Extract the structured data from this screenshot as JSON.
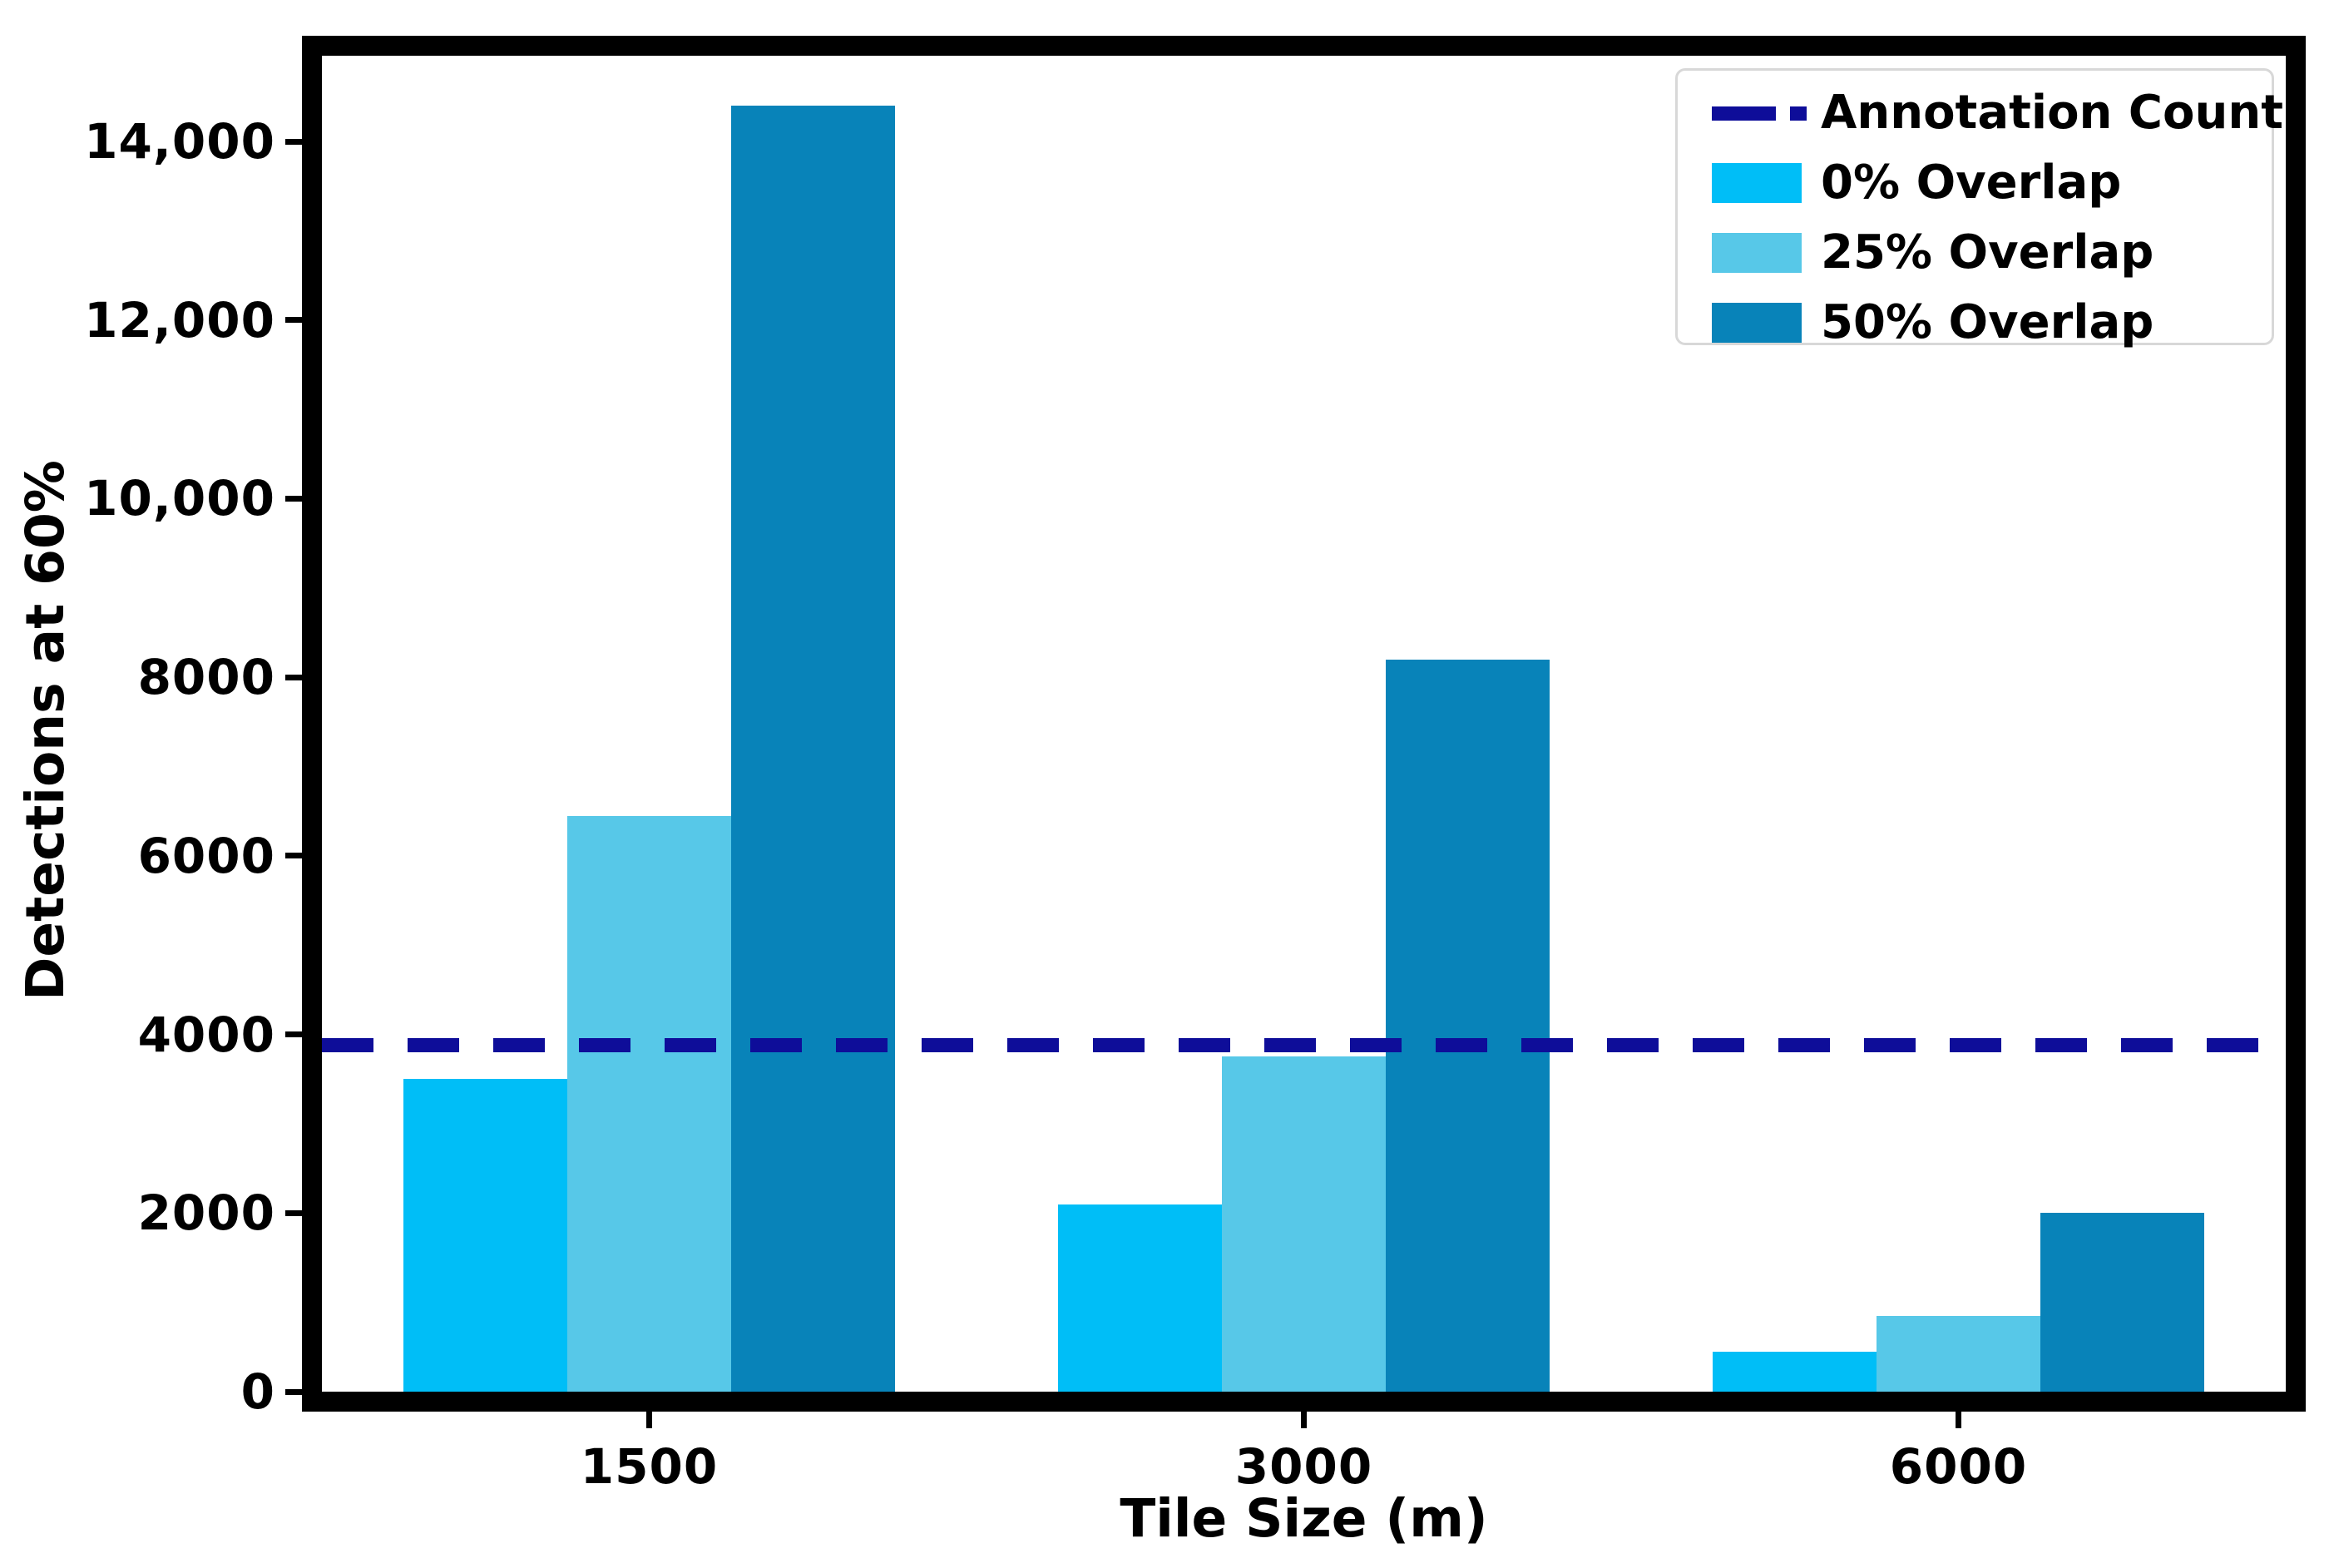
{
  "chart_data": {
    "type": "bar",
    "title": "",
    "xlabel": "Tile Size (m)",
    "ylabel": "Detections at 60%",
    "categories": [
      "1500",
      "3000",
      "6000"
    ],
    "series": [
      {
        "name": "0% Overlap",
        "color": "#00bef7",
        "values": [
          3500,
          2100,
          450
        ]
      },
      {
        "name": "25% Overlap",
        "color": "#57c8e8",
        "values": [
          6450,
          3750,
          850
        ]
      },
      {
        "name": "50% Overlap",
        "color": "#0883b9",
        "values": [
          14400,
          8200,
          2000
        ]
      }
    ],
    "reference_line": {
      "name": "Annotation Count",
      "value": 3880,
      "color": "#0e0d99",
      "style": "dashed"
    },
    "ylim": [
      0,
      14960
    ],
    "yticks": {
      "values": [
        0,
        2000,
        4000,
        6000,
        8000,
        10000,
        12000,
        14000
      ],
      "labels": [
        "0",
        "2000",
        "4000",
        "6000",
        "8000",
        "10,000",
        "12,000",
        "14,000"
      ]
    },
    "legend_position": "upper right",
    "grid": false,
    "axis_color": "#000000",
    "legend_border_color": "#d8d8d8",
    "background_color": "#ffffff"
  }
}
